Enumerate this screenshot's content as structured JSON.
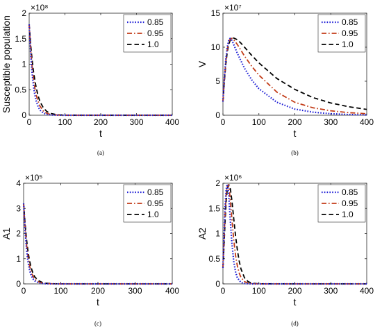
{
  "colors": {
    "0.85": "#1f1fd6",
    "0.95": "#c23b17",
    "1.0": "#000000"
  },
  "chart_data": [
    {
      "type": "line",
      "panel_label": "(a)",
      "xlabel": "t",
      "ylabel": "Susceptible population",
      "exponent": "×10⁸",
      "xlim": [
        0,
        400
      ],
      "ylim": [
        0,
        2
      ],
      "xticks": [
        "0",
        "100",
        "200",
        "300",
        "400"
      ],
      "yticks": [
        "0",
        "0.5",
        "1",
        "1.5",
        "2"
      ],
      "legend": [
        "0.85",
        "0.95",
        "1.0"
      ],
      "legend_position": "top-right",
      "series": [
        {
          "name": "0.85",
          "x": [
            0,
            4,
            8,
            12,
            16,
            20,
            25,
            30,
            40,
            50,
            60,
            80,
            100,
            200,
            300,
            400
          ],
          "y": [
            1.78,
            1.22,
            0.84,
            0.57,
            0.39,
            0.27,
            0.17,
            0.1,
            0.04,
            0.015,
            0.006,
            0.001,
            0.0,
            0.0,
            0.0,
            0.0
          ]
        },
        {
          "name": "0.95",
          "x": [
            0,
            4,
            8,
            12,
            16,
            20,
            25,
            30,
            40,
            50,
            60,
            80,
            100,
            200,
            300,
            400
          ],
          "y": [
            1.78,
            1.32,
            0.97,
            0.72,
            0.53,
            0.39,
            0.27,
            0.18,
            0.08,
            0.035,
            0.015,
            0.003,
            0.0,
            0.0,
            0.0,
            0.0
          ]
        },
        {
          "name": "1.0",
          "x": [
            0,
            4,
            8,
            12,
            16,
            20,
            25,
            30,
            40,
            50,
            60,
            80,
            100,
            200,
            300,
            400
          ],
          "y": [
            1.78,
            1.4,
            1.1,
            0.86,
            0.68,
            0.53,
            0.38,
            0.27,
            0.14,
            0.07,
            0.035,
            0.008,
            0.001,
            0.0,
            0.0,
            0.0
          ]
        }
      ]
    },
    {
      "type": "line",
      "panel_label": "(b)",
      "xlabel": "t",
      "ylabel": "V",
      "exponent": "×10⁷",
      "xlim": [
        0,
        400
      ],
      "ylim": [
        0,
        15
      ],
      "xticks": [
        "0",
        "100",
        "200",
        "300",
        "400"
      ],
      "yticks": [
        "0",
        "5",
        "10",
        "15"
      ],
      "legend": [
        "0.85",
        "0.95",
        "1.0"
      ],
      "legend_position": "top-right",
      "series": [
        {
          "name": "0.85",
          "x": [
            0,
            4,
            8,
            12,
            16,
            20,
            25,
            30,
            40,
            60,
            80,
            100,
            150,
            200,
            250,
            300,
            350,
            400
          ],
          "y": [
            2.0,
            5.5,
            8.2,
            10.0,
            11.0,
            11.3,
            11.0,
            10.4,
            9.1,
            6.9,
            5.2,
            3.9,
            1.9,
            0.9,
            0.45,
            0.22,
            0.1,
            0.05
          ]
        },
        {
          "name": "0.95",
          "x": [
            0,
            4,
            8,
            12,
            16,
            20,
            25,
            30,
            40,
            60,
            80,
            100,
            150,
            200,
            250,
            300,
            350,
            400
          ],
          "y": [
            2.0,
            5.3,
            7.9,
            9.7,
            10.7,
            11.2,
            11.3,
            11.1,
            10.4,
            8.7,
            7.2,
            5.9,
            3.4,
            1.9,
            1.1,
            0.65,
            0.38,
            0.22
          ]
        },
        {
          "name": "1.0",
          "x": [
            0,
            4,
            8,
            12,
            16,
            20,
            25,
            30,
            40,
            50,
            60,
            80,
            100,
            150,
            200,
            250,
            300,
            350,
            400
          ],
          "y": [
            2.0,
            5.0,
            7.5,
            9.3,
            10.4,
            11.0,
            11.3,
            11.35,
            11.1,
            10.6,
            10.0,
            8.8,
            7.7,
            5.4,
            3.8,
            2.6,
            1.8,
            1.25,
            0.85
          ]
        }
      ]
    },
    {
      "type": "line",
      "panel_label": "(c)",
      "xlabel": "t",
      "ylabel": "A1",
      "exponent": "×10⁵",
      "xlim": [
        0,
        400
      ],
      "ylim": [
        0,
        4
      ],
      "xticks": [
        "0",
        "100",
        "200",
        "300",
        "400"
      ],
      "yticks": [
        "0",
        "1",
        "2",
        "3",
        "4"
      ],
      "legend": [
        "0.85",
        "0.95",
        "1.0"
      ],
      "legend_position": "top-right",
      "series": [
        {
          "name": "0.85",
          "x": [
            0,
            4,
            8,
            12,
            16,
            20,
            25,
            30,
            40,
            50,
            60,
            80,
            100,
            200,
            300,
            400
          ],
          "y": [
            3.2,
            2.1,
            1.35,
            0.86,
            0.55,
            0.35,
            0.2,
            0.12,
            0.045,
            0.015,
            0.006,
            0.001,
            0.0,
            0.0,
            0.0,
            0.0
          ]
        },
        {
          "name": "0.95",
          "x": [
            0,
            4,
            8,
            12,
            16,
            20,
            25,
            30,
            40,
            50,
            60,
            80,
            100,
            200,
            300,
            400
          ],
          "y": [
            3.2,
            2.25,
            1.55,
            1.06,
            0.72,
            0.5,
            0.31,
            0.19,
            0.08,
            0.035,
            0.015,
            0.003,
            0.0,
            0.0,
            0.0,
            0.0
          ]
        },
        {
          "name": "1.0",
          "x": [
            0,
            4,
            8,
            12,
            16,
            20,
            25,
            30,
            40,
            50,
            60,
            80,
            100,
            200,
            300,
            400
          ],
          "y": [
            3.2,
            2.4,
            1.75,
            1.27,
            0.92,
            0.66,
            0.43,
            0.28,
            0.13,
            0.06,
            0.028,
            0.006,
            0.001,
            0.0,
            0.0,
            0.0
          ]
        }
      ]
    },
    {
      "type": "line",
      "panel_label": "(d)",
      "xlabel": "t",
      "ylabel": "A2",
      "exponent": "×10⁶",
      "xlim": [
        0,
        400
      ],
      "ylim": [
        0,
        2
      ],
      "xticks": [
        "0",
        "100",
        "200",
        "300",
        "400"
      ],
      "yticks": [
        "0",
        "0.5",
        "1",
        "1.5",
        "2"
      ],
      "legend": [
        "0.85",
        "0.95",
        "1.0"
      ],
      "legend_position": "top-right",
      "series": [
        {
          "name": "0.85",
          "x": [
            0,
            3,
            6,
            9,
            12,
            15,
            18,
            21,
            25,
            30,
            35,
            40,
            50,
            60,
            80,
            100,
            200,
            300,
            400
          ],
          "y": [
            0.32,
            0.95,
            1.55,
            1.88,
            1.98,
            1.85,
            1.55,
            1.2,
            0.8,
            0.45,
            0.24,
            0.12,
            0.03,
            0.008,
            0.0,
            0.0,
            0.0,
            0.0,
            0.0
          ]
        },
        {
          "name": "0.95",
          "x": [
            0,
            3,
            6,
            9,
            12,
            15,
            18,
            21,
            25,
            30,
            35,
            40,
            45,
            50,
            60,
            70,
            80,
            100,
            200,
            300,
            400
          ],
          "y": [
            0.32,
            0.85,
            1.4,
            1.78,
            1.95,
            1.97,
            1.85,
            1.62,
            1.28,
            0.88,
            0.57,
            0.36,
            0.22,
            0.13,
            0.045,
            0.015,
            0.005,
            0.0,
            0.0,
            0.0,
            0.0
          ]
        },
        {
          "name": "1.0",
          "x": [
            0,
            3,
            6,
            9,
            12,
            15,
            18,
            21,
            25,
            30,
            35,
            40,
            45,
            50,
            60,
            70,
            80,
            100,
            200,
            300,
            400
          ],
          "y": [
            0.32,
            0.75,
            1.25,
            1.65,
            1.88,
            1.97,
            1.96,
            1.87,
            1.65,
            1.3,
            0.96,
            0.68,
            0.46,
            0.3,
            0.12,
            0.045,
            0.016,
            0.002,
            0.0,
            0.0,
            0.0
          ]
        }
      ]
    }
  ]
}
